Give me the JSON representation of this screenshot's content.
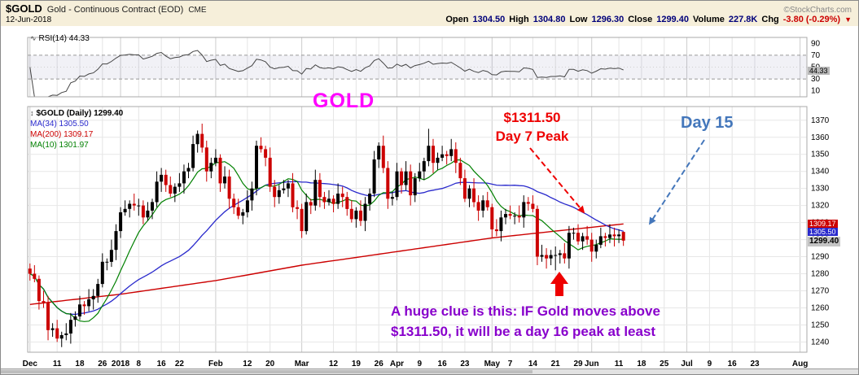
{
  "header": {
    "symbol": "$GOLD",
    "description": "Gold - Continuous Contract (EOD)",
    "exchange": "CME",
    "copyright": "©StockCharts.com",
    "date": "12-Jun-2018",
    "quote": {
      "open_label": "Open",
      "open": "1304.50",
      "high_label": "High",
      "high": "1304.80",
      "low_label": "Low",
      "low": "1296.30",
      "close_label": "Close",
      "close": "1299.40",
      "volume_label": "Volume",
      "volume": "227.8K",
      "chg_label": "Chg",
      "chg": "-3.80 (-0.29%)"
    }
  },
  "icons": {
    "chg_down": "▼",
    "rsi_legend": "∿",
    "price_legend": "↕"
  },
  "rsi_panel": {
    "legend": "RSI(14) 44.33",
    "value_tag": "44.33"
  },
  "main_panel": {
    "legend": "$GOLD (Daily) 1299.40",
    "ma34_label": "MA(34) 1305.50",
    "ma200_label": "MA(200) 1309.17",
    "ma10_label": "MA(10) 1301.97",
    "price_tags": [
      {
        "text": "1309.17",
        "value": 1309.17,
        "color": "#cc0000",
        "text_color": "#ffffff"
      },
      {
        "text": "1305.50",
        "value": 1305.5,
        "color": "#2929cc",
        "text_color": "#ffffff"
      },
      {
        "text": "1299.40",
        "value": 1299.4,
        "color": "#c4c4c4",
        "text_color": "#000000"
      }
    ]
  },
  "annotations": {
    "gold": "GOLD",
    "peak_line1": "$1311.50",
    "peak_line2": "Day 7 Peak",
    "day15": "Day 15",
    "clue_line1": "A huge clue is this:  IF Gold moves above",
    "clue_line2": "$1311.50, it will be a day 16 peak at least"
  },
  "colors": {
    "up": "#000000",
    "down": "#cc0000",
    "ma10": "#008000",
    "ma34": "#2929cc",
    "ma200": "#cc0000",
    "rsi_line": "#444444",
    "accent_magenta": "#ff00ff",
    "annotation_red": "#ee0000",
    "annotation_blue": "#4477bb",
    "annotation_purple": "#8800cc"
  },
  "chart_data": {
    "type": "candlestick",
    "title": "$GOLD (Daily)",
    "last_price": 1299.4,
    "total_slots": 172,
    "y_ticks": [
      1370,
      1360,
      1350,
      1340,
      1330,
      1320,
      1310,
      1300,
      1290,
      1280,
      1270,
      1260,
      1250,
      1240
    ],
    "y_range": [
      1234,
      1378
    ],
    "x_ticks": [
      {
        "label": "Dec",
        "slot": 0,
        "m": true
      },
      {
        "label": "11",
        "slot": 6
      },
      {
        "label": "18",
        "slot": 11
      },
      {
        "label": "26",
        "slot": 16
      },
      {
        "label": "2018",
        "slot": 20,
        "m": true
      },
      {
        "label": "8",
        "slot": 24
      },
      {
        "label": "16",
        "slot": 29
      },
      {
        "label": "22",
        "slot": 33
      },
      {
        "label": "Feb",
        "slot": 41,
        "m": true
      },
      {
        "label": "12",
        "slot": 48
      },
      {
        "label": "20",
        "slot": 53
      },
      {
        "label": "Mar",
        "slot": 60,
        "m": true
      },
      {
        "label": "12",
        "slot": 67
      },
      {
        "label": "19",
        "slot": 72
      },
      {
        "label": "26",
        "slot": 77
      },
      {
        "label": "Apr",
        "slot": 81,
        "m": true
      },
      {
        "label": "9",
        "slot": 86
      },
      {
        "label": "16",
        "slot": 91
      },
      {
        "label": "23",
        "slot": 96
      },
      {
        "label": "May",
        "slot": 102,
        "m": true
      },
      {
        "label": "7",
        "slot": 106
      },
      {
        "label": "14",
        "slot": 111
      },
      {
        "label": "21",
        "slot": 116
      },
      {
        "label": "29",
        "slot": 121
      },
      {
        "label": "Jun",
        "slot": 124,
        "m": true
      },
      {
        "label": "11",
        "slot": 130
      },
      {
        "label": "18",
        "slot": 135
      },
      {
        "label": "25",
        "slot": 140
      },
      {
        "label": "Jul",
        "slot": 145,
        "m": true
      },
      {
        "label": "9",
        "slot": 150
      },
      {
        "label": "16",
        "slot": 155
      },
      {
        "label": "23",
        "slot": 160
      },
      {
        "label": "Aug",
        "slot": 170,
        "m": true
      }
    ],
    "rsi": {
      "period": 14,
      "last": 44.33,
      "overbought": 70,
      "oversold": 30,
      "ticks": [
        90,
        70,
        50,
        30,
        10
      ]
    },
    "ma_periods": {
      "ma10": 10,
      "ma34": 34,
      "ma200": 200
    },
    "ma200_keypoints": [
      [
        0,
        1262
      ],
      [
        20,
        1268
      ],
      [
        41,
        1276
      ],
      [
        60,
        1285
      ],
      [
        81,
        1293
      ],
      [
        102,
        1301
      ],
      [
        116,
        1305
      ],
      [
        131,
        1309.2
      ]
    ],
    "candles": [
      [
        1283,
        1286,
        1276,
        1280
      ],
      [
        1280,
        1285,
        1275,
        1277
      ],
      [
        1277,
        1279,
        1259,
        1264
      ],
      [
        1264,
        1270,
        1260,
        1263
      ],
      [
        1263,
        1267,
        1241,
        1247
      ],
      [
        1247,
        1251,
        1243,
        1248
      ],
      [
        1248,
        1253,
        1240,
        1242
      ],
      [
        1242,
        1246,
        1237,
        1244
      ],
      [
        1244,
        1251,
        1241,
        1245
      ],
      [
        1245,
        1257,
        1239,
        1253
      ],
      [
        1253,
        1258,
        1249,
        1255
      ],
      [
        1255,
        1267,
        1253,
        1262
      ],
      [
        1262,
        1264,
        1256,
        1261
      ],
      [
        1261,
        1271,
        1258,
        1265
      ],
      [
        1265,
        1271,
        1259,
        1267
      ],
      [
        1267,
        1277,
        1263,
        1274
      ],
      [
        1274,
        1292,
        1272,
        1287
      ],
      [
        1287,
        1289,
        1282,
        1287
      ],
      [
        1287,
        1300,
        1284,
        1294
      ],
      [
        1294,
        1309,
        1288,
        1305
      ],
      [
        1305,
        1319,
        1301,
        1316
      ],
      [
        1316,
        1323,
        1314,
        1318
      ],
      [
        1318,
        1323,
        1313,
        1321
      ],
      [
        1321,
        1327,
        1317,
        1320
      ],
      [
        1320,
        1324,
        1314,
        1320
      ],
      [
        1320,
        1323,
        1309,
        1313
      ],
      [
        1313,
        1322,
        1311,
        1317
      ],
      [
        1317,
        1324,
        1312,
        1322
      ],
      [
        1322,
        1340,
        1319,
        1334
      ],
      [
        1334,
        1342,
        1328,
        1338
      ],
      [
        1338,
        1341,
        1328,
        1332
      ],
      [
        1332,
        1337,
        1325,
        1327
      ],
      [
        1327,
        1333,
        1322,
        1331
      ],
      [
        1331,
        1339,
        1328,
        1333
      ],
      [
        1333,
        1344,
        1327,
        1340
      ],
      [
        1340,
        1345,
        1336,
        1342
      ],
      [
        1342,
        1361,
        1340,
        1356
      ],
      [
        1356,
        1364,
        1351,
        1362
      ],
      [
        1362,
        1368,
        1351,
        1354
      ],
      [
        1354,
        1358,
        1334,
        1340
      ],
      [
        1340,
        1348,
        1336,
        1345
      ],
      [
        1345,
        1353,
        1343,
        1348
      ],
      [
        1348,
        1350,
        1328,
        1333
      ],
      [
        1333,
        1343,
        1330,
        1337
      ],
      [
        1337,
        1341,
        1318,
        1324
      ],
      [
        1324,
        1327,
        1315,
        1319
      ],
      [
        1319,
        1324,
        1312,
        1314
      ],
      [
        1314,
        1318,
        1309,
        1316
      ],
      [
        1316,
        1329,
        1313,
        1323
      ],
      [
        1323,
        1334,
        1317,
        1330
      ],
      [
        1330,
        1358,
        1326,
        1355
      ],
      [
        1355,
        1360,
        1351,
        1353
      ],
      [
        1353,
        1355,
        1343,
        1348
      ],
      [
        1348,
        1354,
        1328,
        1331
      ],
      [
        1331,
        1335,
        1319,
        1325
      ],
      [
        1325,
        1332,
        1321,
        1329
      ],
      [
        1329,
        1335,
        1327,
        1330
      ],
      [
        1330,
        1335,
        1325,
        1333
      ],
      [
        1333,
        1339,
        1316,
        1319
      ],
      [
        1319,
        1323,
        1312,
        1318
      ],
      [
        1318,
        1321,
        1301,
        1305
      ],
      [
        1305,
        1327,
        1303,
        1322
      ],
      [
        1322,
        1324,
        1315,
        1320
      ],
      [
        1320,
        1341,
        1317,
        1335
      ],
      [
        1335,
        1339,
        1319,
        1325
      ],
      [
        1325,
        1328,
        1318,
        1322
      ],
      [
        1322,
        1329,
        1320,
        1324
      ],
      [
        1324,
        1326,
        1316,
        1321
      ],
      [
        1321,
        1333,
        1318,
        1327
      ],
      [
        1327,
        1331,
        1319,
        1325
      ],
      [
        1325,
        1328,
        1314,
        1318
      ],
      [
        1318,
        1323,
        1310,
        1312
      ],
      [
        1312,
        1319,
        1307,
        1317
      ],
      [
        1317,
        1323,
        1308,
        1311
      ],
      [
        1311,
        1325,
        1305,
        1321
      ],
      [
        1321,
        1330,
        1317,
        1327
      ],
      [
        1327,
        1352,
        1325,
        1347
      ],
      [
        1347,
        1357,
        1342,
        1355
      ],
      [
        1355,
        1361,
        1339,
        1342
      ],
      [
        1342,
        1346,
        1318,
        1324
      ],
      [
        1324,
        1328,
        1320,
        1325
      ],
      [
        1325,
        1345,
        1323,
        1340
      ],
      [
        1340,
        1342,
        1327,
        1332
      ],
      [
        1332,
        1346,
        1329,
        1340
      ],
      [
        1340,
        1344,
        1320,
        1326
      ],
      [
        1326,
        1339,
        1322,
        1336
      ],
      [
        1336,
        1345,
        1334,
        1340
      ],
      [
        1340,
        1348,
        1335,
        1346
      ],
      [
        1346,
        1365,
        1343,
        1355
      ],
      [
        1355,
        1359,
        1339,
        1345
      ],
      [
        1345,
        1351,
        1341,
        1348
      ],
      [
        1348,
        1355,
        1346,
        1350
      ],
      [
        1350,
        1352,
        1344,
        1349
      ],
      [
        1349,
        1359,
        1346,
        1353
      ],
      [
        1353,
        1357,
        1339,
        1345
      ],
      [
        1345,
        1348,
        1332,
        1336
      ],
      [
        1336,
        1341,
        1322,
        1324
      ],
      [
        1324,
        1332,
        1319,
        1330
      ],
      [
        1330,
        1336,
        1319,
        1322
      ],
      [
        1322,
        1326,
        1311,
        1317
      ],
      [
        1317,
        1326,
        1313,
        1323
      ],
      [
        1323,
        1328,
        1317,
        1319
      ],
      [
        1319,
        1321,
        1301,
        1306
      ],
      [
        1306,
        1312,
        1302,
        1305
      ],
      [
        1305,
        1317,
        1299,
        1313
      ],
      [
        1313,
        1318,
        1309,
        1315
      ],
      [
        1315,
        1320,
        1312,
        1314
      ],
      [
        1314,
        1316,
        1309,
        1314
      ],
      [
        1314,
        1320,
        1310,
        1313
      ],
      [
        1313,
        1326,
        1307,
        1322
      ],
      [
        1322,
        1325,
        1317,
        1321
      ],
      [
        1321,
        1326,
        1316,
        1318
      ],
      [
        1318,
        1320,
        1285,
        1290
      ],
      [
        1290,
        1297,
        1287,
        1291
      ],
      [
        1291,
        1295,
        1283,
        1289
      ],
      [
        1289,
        1294,
        1285,
        1291
      ],
      [
        1291,
        1296,
        1282,
        1291
      ],
      [
        1291,
        1294,
        1286,
        1292
      ],
      [
        1292,
        1298,
        1286,
        1289
      ],
      [
        1289,
        1308,
        1283,
        1304
      ],
      [
        1304,
        1307,
        1300,
        1304
      ],
      [
        1304,
        1309,
        1297,
        1299
      ],
      [
        1299,
        1304,
        1294,
        1302
      ],
      [
        1302,
        1308,
        1297,
        1300
      ],
      [
        1300,
        1304,
        1287,
        1293
      ],
      [
        1293,
        1300,
        1289,
        1297
      ],
      [
        1297,
        1307,
        1295,
        1302
      ],
      [
        1302,
        1304,
        1296,
        1301
      ],
      [
        1301,
        1309,
        1298,
        1303
      ],
      [
        1303,
        1307,
        1296,
        1302
      ],
      [
        1302,
        1306,
        1298,
        1303
      ],
      [
        1304.5,
        1304.8,
        1296.3,
        1299.4
      ]
    ]
  }
}
